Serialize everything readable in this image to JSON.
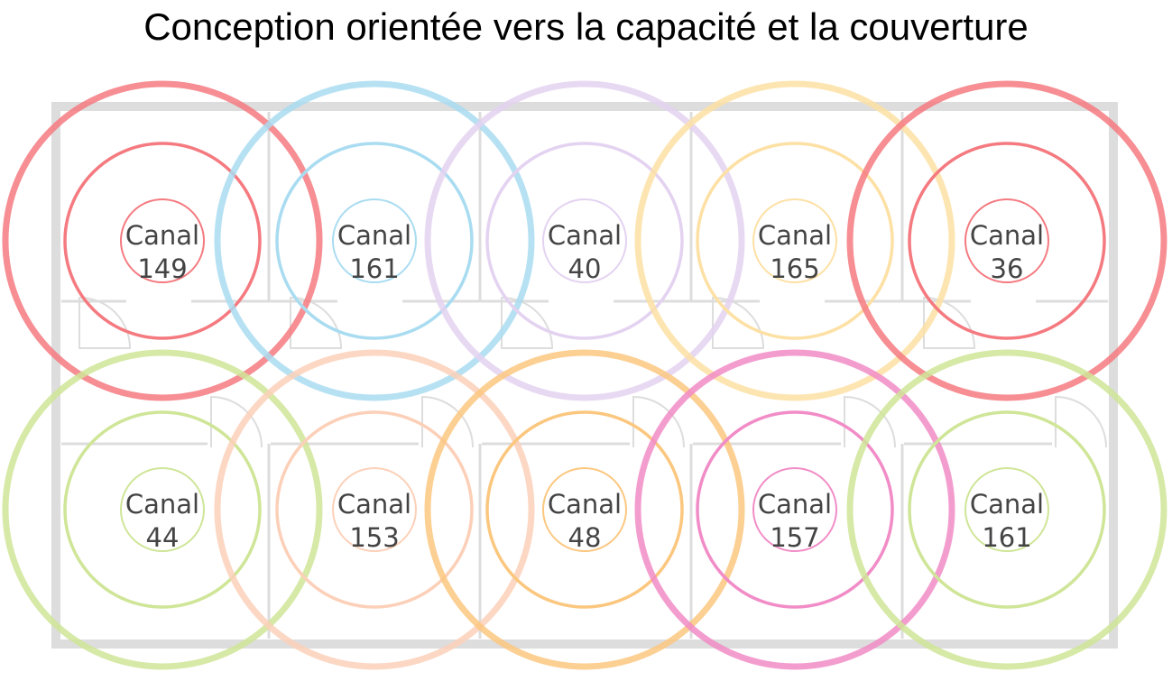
{
  "title": "Conception orientée vers la capacité et la couverture",
  "label_word": "Canal",
  "access_points": [
    {
      "row": 0,
      "col": 0,
      "channel": "149",
      "color": "#f47a80",
      "outer_opacity": 0.85
    },
    {
      "row": 0,
      "col": 1,
      "channel": "161",
      "color": "#a9dcf1",
      "outer_opacity": 0.85
    },
    {
      "row": 0,
      "col": 2,
      "channel": "40",
      "color": "#e4d2f1",
      "outer_opacity": 0.85
    },
    {
      "row": 0,
      "col": 3,
      "channel": "165",
      "color": "#fde0a4",
      "outer_opacity": 0.85
    },
    {
      "row": 0,
      "col": 4,
      "channel": "36",
      "color": "#f47a80",
      "outer_opacity": 0.85
    },
    {
      "row": 1,
      "col": 0,
      "channel": "44",
      "color": "#cfe597",
      "outer_opacity": 0.85
    },
    {
      "row": 1,
      "col": 1,
      "channel": "153",
      "color": "#fcd0b8",
      "outer_opacity": 0.85
    },
    {
      "row": 1,
      "col": 2,
      "channel": "48",
      "color": "#fbc77f",
      "outer_opacity": 0.85
    },
    {
      "row": 1,
      "col": 3,
      "channel": "157",
      "color": "#f18cc7",
      "outer_opacity": 0.85
    },
    {
      "row": 1,
      "col": 4,
      "channel": "161",
      "color": "#cfe597",
      "outer_opacity": 0.85
    }
  ]
}
